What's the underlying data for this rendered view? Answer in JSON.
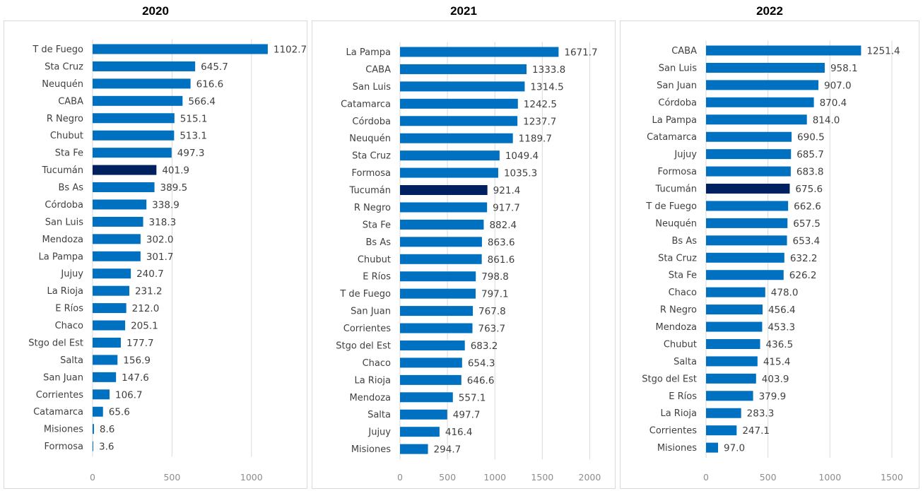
{
  "chart_data": [
    {
      "type": "bar",
      "orientation": "horizontal",
      "title": "2020",
      "highlight_category": "Tucumán",
      "xlim": [
        0,
        1250
      ],
      "xticks": [
        "0",
        "500",
        "1000"
      ],
      "categories": [
        "T de Fuego",
        "Sta Cruz",
        "Neuquén",
        "CABA",
        "R Negro",
        "Chubut",
        "Sta Fe",
        "Tucumán",
        "Bs As",
        "Córdoba",
        "San Luis",
        "Mendoza",
        "La Pampa",
        "Jujuy",
        "La Rioja",
        "E Ríos",
        "Chaco",
        "Stgo del Est",
        "Salta",
        "San Juan",
        "Corrientes",
        "Catamarca",
        "Misiones",
        "Formosa"
      ],
      "values": [
        1102.7,
        645.7,
        616.6,
        566.4,
        515.1,
        513.1,
        497.3,
        401.9,
        389.5,
        338.9,
        318.3,
        302.0,
        301.7,
        240.7,
        231.2,
        212.0,
        205.1,
        177.7,
        156.9,
        147.6,
        106.7,
        65.6,
        8.6,
        3.6
      ],
      "labels": [
        "1102.7",
        "645.7",
        "616.6",
        "566.4",
        "515.1",
        "513.1",
        "497.3",
        "401.9",
        "389.5",
        "338.9",
        "318.3",
        "302.0",
        "301.7",
        "240.7",
        "231.2",
        "212.0",
        "205.1",
        "177.7",
        "156.9",
        "147.6",
        "106.7",
        "65.6",
        "8.6",
        "3.6"
      ]
    },
    {
      "type": "bar",
      "orientation": "horizontal",
      "title": "2021",
      "highlight_category": "Tucumán",
      "xlim": [
        0,
        2250
      ],
      "xticks": [
        "0",
        "500",
        "1000",
        "1500",
        "2000"
      ],
      "categories": [
        "La Pampa",
        "CABA",
        "San Luis",
        "Catamarca",
        "Córdoba",
        "Neuquén",
        "Sta Cruz",
        "Formosa",
        "Tucumán",
        "R Negro",
        "Sta Fe",
        "Bs As",
        "Chubut",
        "E Ríos",
        "T de Fuego",
        "San Juan",
        "Corrientes",
        "Stgo del Est",
        "Chaco",
        "La Rioja",
        "Mendoza",
        "Salta",
        "Jujuy",
        "Misiones"
      ],
      "values": [
        1671.7,
        1333.8,
        1314.5,
        1242.5,
        1237.7,
        1189.7,
        1049.4,
        1035.3,
        921.4,
        917.7,
        882.4,
        863.6,
        861.6,
        798.8,
        797.1,
        767.8,
        763.7,
        683.2,
        654.3,
        646.6,
        557.1,
        497.7,
        416.4,
        294.7
      ],
      "labels": [
        "1671.7",
        "1333.8",
        "1314.5",
        "1242.5",
        "1237.7",
        "1189.7",
        "1049.4",
        "1035.3",
        "921.4",
        "917.7",
        "882.4",
        "863.6",
        "861.6",
        "798.8",
        "797.1",
        "767.8",
        "763.7",
        "683.2",
        "654.3",
        "646.6",
        "557.1",
        "497.7",
        "416.4",
        "294.7"
      ]
    },
    {
      "type": "bar",
      "orientation": "horizontal",
      "title": "2022",
      "highlight_category": "Tucumán",
      "xlim": [
        0,
        1700
      ],
      "xticks": [
        "0",
        "500",
        "1000",
        "1500"
      ],
      "categories": [
        "CABA",
        "San Luis",
        "San Juan",
        "Córdoba",
        "La Pampa",
        "Catamarca",
        "Jujuy",
        "Formosa",
        "Tucumán",
        "T de Fuego",
        "Neuquén",
        "Bs As",
        "Sta Cruz",
        "Sta Fe",
        "Chaco",
        "R Negro",
        "Mendoza",
        "Chubut",
        "Salta",
        "Stgo del Est",
        "E Ríos",
        "La Rioja",
        "Corrientes",
        "Misiones"
      ],
      "values": [
        1251.4,
        958.1,
        907.0,
        870.4,
        814.0,
        690.5,
        685.7,
        683.8,
        675.6,
        662.6,
        657.5,
        653.4,
        632.2,
        626.2,
        478.0,
        456.4,
        453.3,
        436.5,
        415.4,
        403.9,
        379.9,
        283.3,
        247.1,
        97.0
      ],
      "labels": [
        "1251.4",
        "958.1",
        "907.0",
        "870.4",
        "814.0",
        "690.5",
        "685.7",
        "683.8",
        "675.6",
        "662.6",
        "657.5",
        "653.4",
        "632.2",
        "626.2",
        "478.0",
        "456.4",
        "453.3",
        "436.5",
        "415.4",
        "403.9",
        "379.9",
        "283.3",
        "247.1",
        "97.0"
      ]
    }
  ],
  "colors": {
    "bar": "#0070c0",
    "highlight": "#002060",
    "gridline": "#d9d9d9",
    "text": "#404040",
    "tick": "#8c8c8c"
  }
}
